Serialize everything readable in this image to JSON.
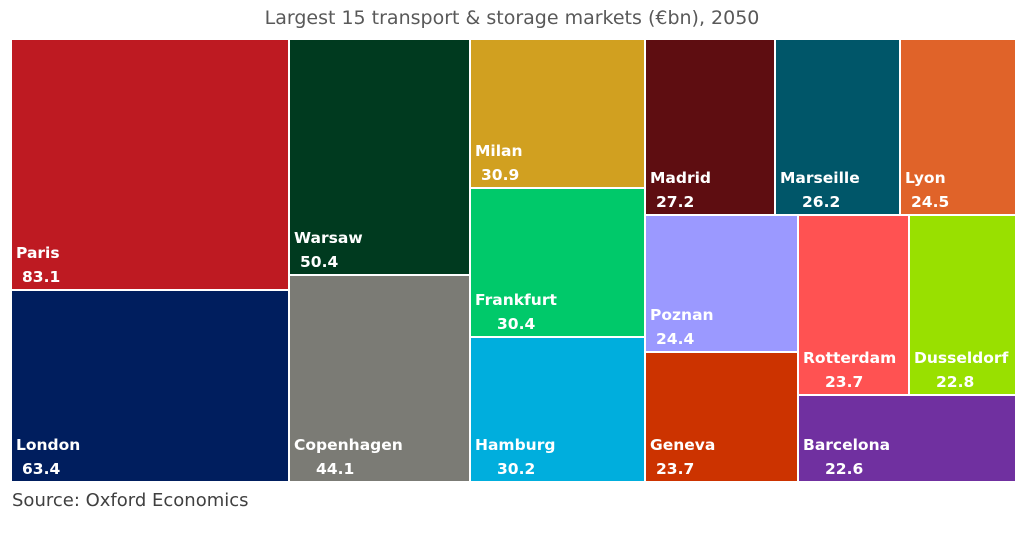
{
  "chart_data": {
    "type": "treemap",
    "title": "Largest 15 transport & storage markets (€bn), 2050",
    "source": "Source: Oxford Economics",
    "items": [
      {
        "name": "Paris",
        "value": 83.1,
        "color": "#BE1A22"
      },
      {
        "name": "London",
        "value": 63.4,
        "color": "#001E5E"
      },
      {
        "name": "Warsaw",
        "value": 50.4,
        "color": "#003A1F"
      },
      {
        "name": "Copenhagen",
        "value": 44.1,
        "color": "#7B7B75"
      },
      {
        "name": "Milan",
        "value": 30.9,
        "color": "#D1A020"
      },
      {
        "name": "Frankfurt",
        "value": 30.4,
        "color": "#00C96A"
      },
      {
        "name": "Hamburg",
        "value": 30.2,
        "color": "#00AEDD"
      },
      {
        "name": "Madrid",
        "value": 27.2,
        "color": "#5E0D11"
      },
      {
        "name": "Marseille",
        "value": 26.2,
        "color": "#005669"
      },
      {
        "name": "Lyon",
        "value": 24.5,
        "color": "#E06329"
      },
      {
        "name": "Poznan",
        "value": 24.4,
        "color": "#9B99FF"
      },
      {
        "name": "Rotterdam",
        "value": 23.7,
        "color": "#FF5252"
      },
      {
        "name": "Dusseldorf",
        "value": 22.8,
        "color": "#99E000"
      },
      {
        "name": "Geneva",
        "value": 23.7,
        "color": "#CC3300"
      },
      {
        "name": "Barcelona",
        "value": 22.6,
        "color": "#7030A0"
      }
    ]
  }
}
